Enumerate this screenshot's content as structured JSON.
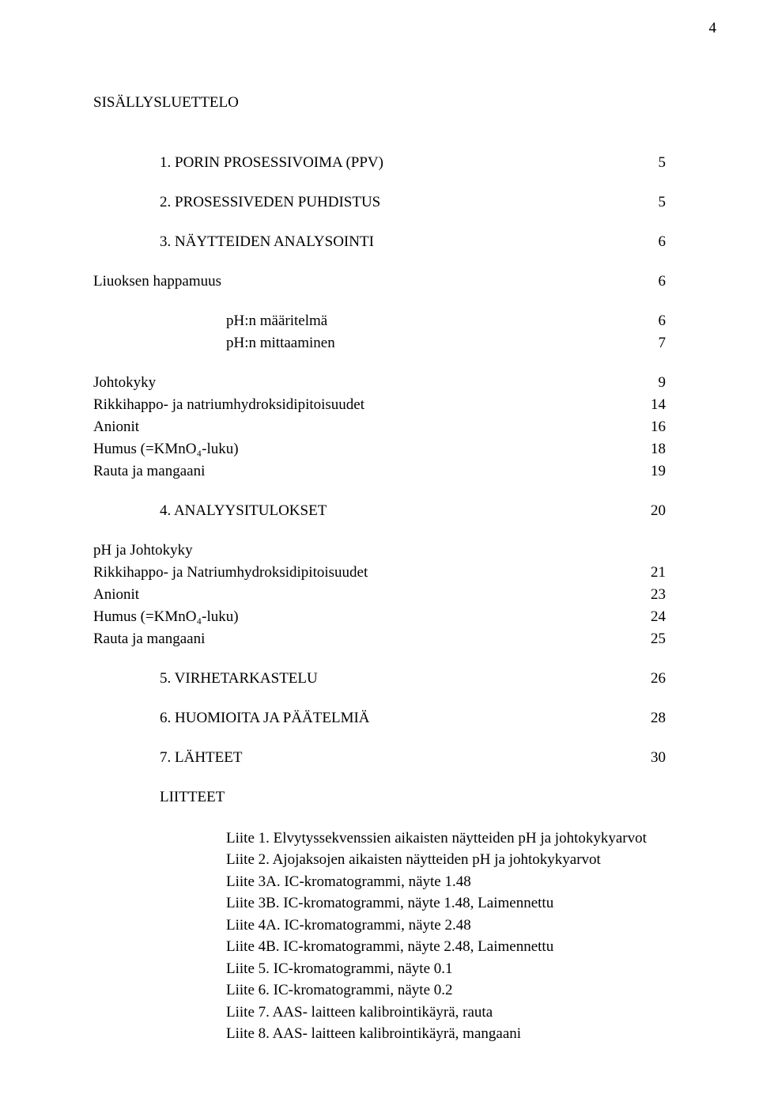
{
  "page_number": "4",
  "main_title": "SISÄLLYSLUETTELO",
  "sections": {
    "s1": {
      "label": "1. PORIN PROSESSIVOIMA (PPV)",
      "page": "5"
    },
    "s2": {
      "label": "2. PROSESSIVEDEN PUHDISTUS",
      "page": "5"
    },
    "s3": {
      "label": "3. NÄYTTEIDEN ANALYSOINTI",
      "page": "6"
    },
    "s3_1": {
      "label": "Liuoksen happamuus",
      "page": "6"
    },
    "s3_1a": {
      "label": "pH:n määritelmä",
      "page": "6"
    },
    "s3_1b": {
      "label": "pH:n mittaaminen",
      "page": "7"
    },
    "s3_2": {
      "label": "Johtokyky",
      "page": "9"
    },
    "s3_3": {
      "label": "Rikkihappo- ja natriumhydroksidipitoisuudet",
      "page": "14"
    },
    "s3_4": {
      "label": "Anionit",
      "page": "16"
    },
    "s3_5": {
      "label": "Humus (=KMnO₄-luku)",
      "page": "18"
    },
    "s3_6": {
      "label": "Rauta ja mangaani",
      "page": "19"
    },
    "s4": {
      "label": "4. ANALYYSITULOKSET",
      "page": "20"
    },
    "s4_1": {
      "label": "pH ja Johtokyky",
      "page": ""
    },
    "s4_2": {
      "label": "Rikkihappo- ja Natriumhydroksidipitoisuudet",
      "page": "21"
    },
    "s4_3": {
      "label": "Anionit",
      "page": "23"
    },
    "s4_4": {
      "label": "Humus (=KMnO₄-luku)",
      "page": "24"
    },
    "s4_5": {
      "label": "Rauta ja mangaani",
      "page": "25"
    },
    "s5": {
      "label": "5. VIRHETARKASTELU",
      "page": "26"
    },
    "s6": {
      "label": "6. HUOMIOITA JA PÄÄTELMIÄ",
      "page": "28"
    },
    "s7": {
      "label": "7. LÄHTEET",
      "page": "30"
    },
    "liitteet_heading": "LIITTEET"
  },
  "liitteet": [
    "Liite 1. Elvytyssekvenssien aikaisten näytteiden pH ja johtokykyarvot",
    "Liite 2. Ajojaksojen aikaisten näytteiden pH ja johtokykyarvot",
    "Liite 3A. IC-kromatogrammi, näyte 1.48",
    "Liite 3B. IC-kromatogrammi, näyte 1.48, Laimennettu",
    "Liite 4A. IC-kromatogrammi, näyte 2.48",
    "Liite 4B. IC-kromatogrammi, näyte 2.48, Laimennettu",
    "Liite 5. IC-kromatogrammi, näyte 0.1",
    "Liite 6. IC-kromatogrammi, näyte 0.2",
    "Liite 7. AAS- laitteen kalibrointikäyrä, rauta",
    "Liite 8. AAS- laitteen kalibrointikäyrä, mangaani"
  ]
}
